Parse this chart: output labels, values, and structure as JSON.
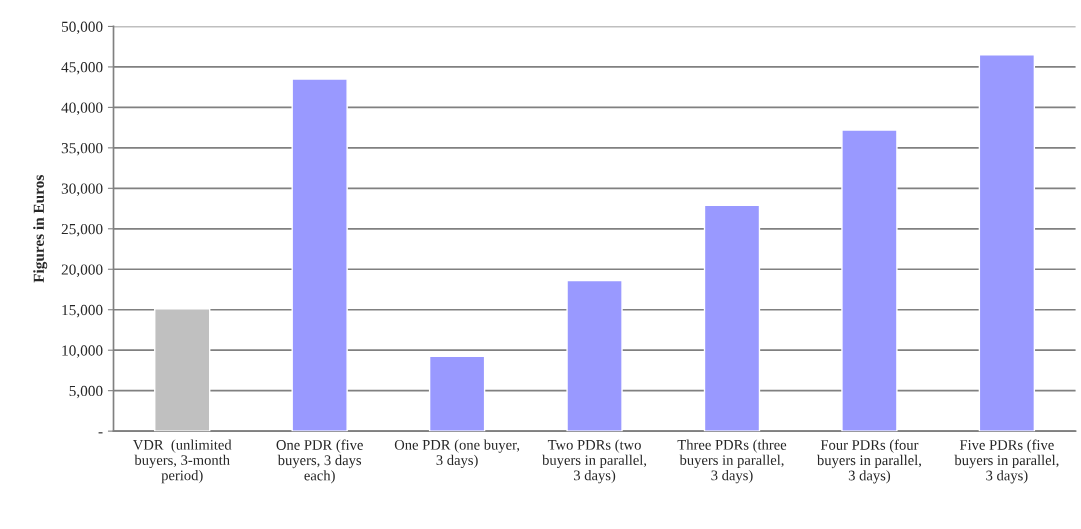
{
  "chart_data": {
    "type": "bar",
    "ylabel": "Figures in Euros",
    "categories": [
      "VDR  (unlimited buyers, 3-month period)",
      "One PDR (five buyers, 3 days each)",
      "One PDR (one buyer, 3 days)",
      "Two PDRs (two buyers in parallel, 3 days)",
      "Three PDRs (three buyers in parallel, 3 days)",
      "Four PDRs (four buyers in parallel, 3 days)",
      "Five PDRs (five buyers in parallel, 3 days)"
    ],
    "values": [
      15100,
      43500,
      9250,
      18600,
      27900,
      37200,
      46500
    ],
    "colors": [
      "#c0c0c0",
      "#9999ff",
      "#9999ff",
      "#9999ff",
      "#9999ff",
      "#9999ff",
      "#9999ff"
    ],
    "ylim": [
      0,
      50000
    ],
    "yticks": [
      {
        "value": 0,
        "label": "-"
      },
      {
        "value": 5000,
        "label": "5,000"
      },
      {
        "value": 10000,
        "label": "10,000"
      },
      {
        "value": 15000,
        "label": "15,000"
      },
      {
        "value": 20000,
        "label": "20,000"
      },
      {
        "value": 25000,
        "label": "25,000"
      },
      {
        "value": 30000,
        "label": "30,000"
      },
      {
        "value": 35000,
        "label": "35,000"
      },
      {
        "value": 40000,
        "label": "40,000"
      },
      {
        "value": 45000,
        "label": "45,000"
      },
      {
        "value": 50000,
        "label": "50,000"
      }
    ],
    "grid": "y",
    "legend": false
  }
}
